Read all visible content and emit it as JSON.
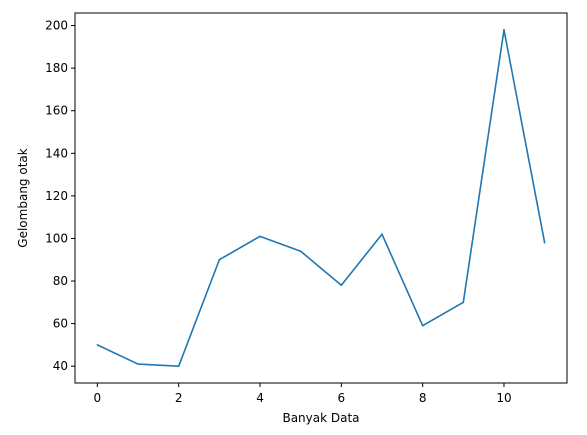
{
  "chart_data": {
    "type": "line",
    "title": "",
    "xlabel": "Banyak Data",
    "ylabel": "Gelombang otak",
    "xlim": [
      -0.55,
      11.55
    ],
    "ylim": [
      32.1,
      205.9
    ],
    "x_ticks": [
      0,
      2,
      4,
      6,
      8,
      10
    ],
    "y_ticks": [
      40,
      60,
      80,
      100,
      120,
      140,
      160,
      180,
      200
    ],
    "grid": false,
    "legend": "none",
    "series": [
      {
        "color": "#1f77b4",
        "x": [
          0,
          1,
          2,
          3,
          4,
          5,
          6,
          7,
          8,
          9,
          10,
          11
        ],
        "y": [
          50,
          41,
          40,
          90,
          101,
          94,
          78,
          102,
          59,
          70,
          198,
          98
        ]
      }
    ]
  }
}
